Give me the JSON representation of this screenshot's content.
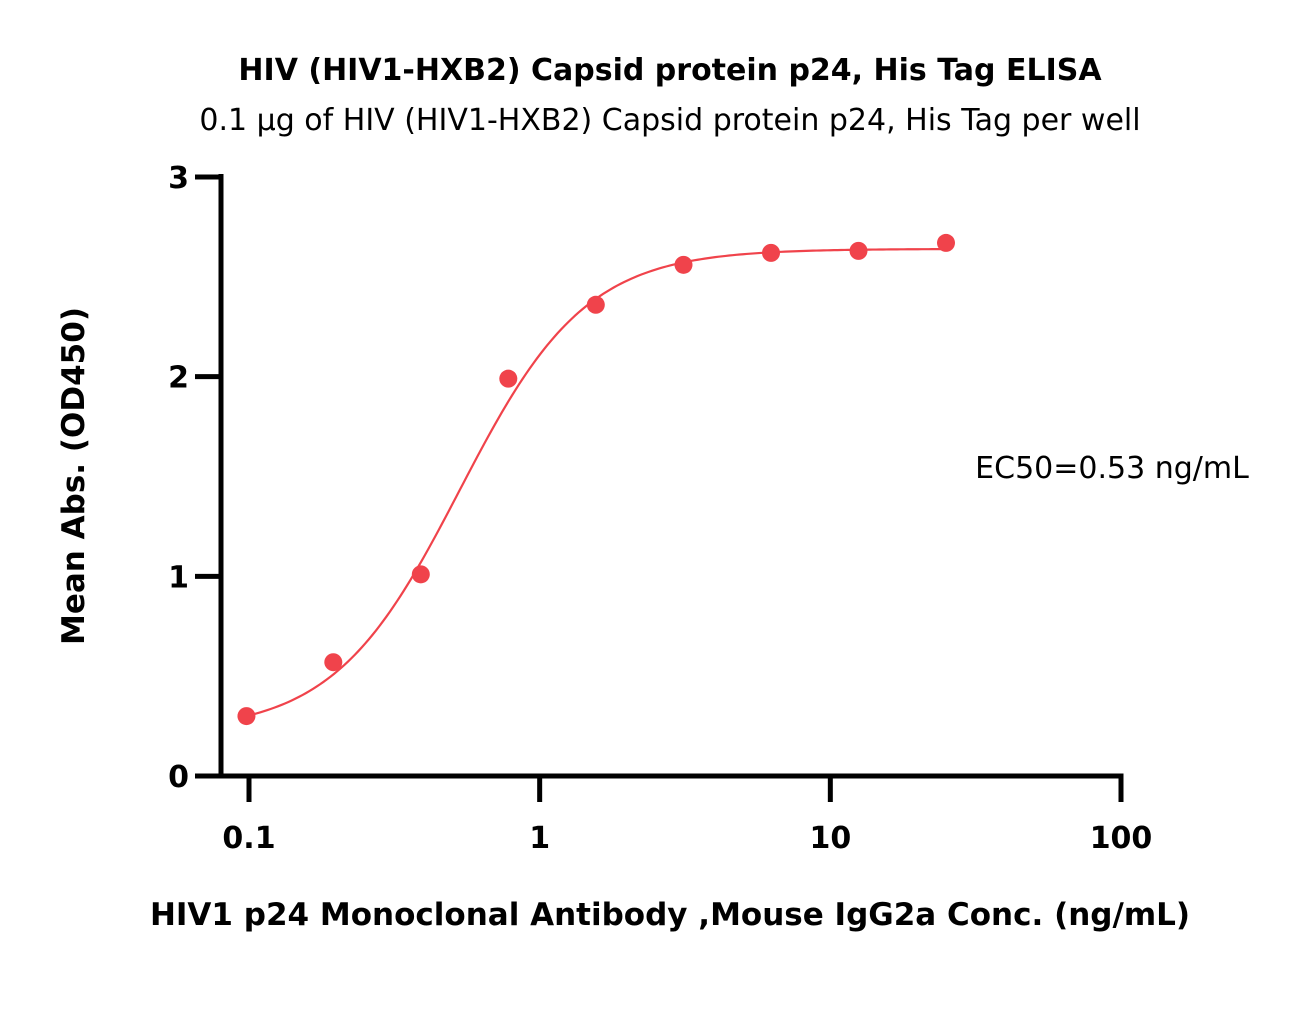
{
  "chart_data": {
    "type": "scatter",
    "title": "HIV (HIV1-HXB2) Capsid protein p24, His Tag ELISA",
    "subtitle": "0.1 µg of HIV (HIV1-HXB2) Capsid protein p24, His Tag per well",
    "xlabel": "HIV1 p24 Monoclonal Antibody ,Mouse IgG2a Conc. (ng/mL)",
    "ylabel": "Mean Abs. (OD450)",
    "xscale": "log",
    "xlim": [
      0.1,
      100
    ],
    "ylim": [
      0,
      3
    ],
    "x_ticks": [
      "0.1",
      "1",
      "10",
      "100"
    ],
    "y_ticks": [
      "0",
      "1",
      "2",
      "3"
    ],
    "grid": false,
    "annotation": "EC50=0.53 ng/mL",
    "series": [
      {
        "x": [
          0.098,
          0.195,
          0.39,
          0.78,
          1.56,
          3.125,
          6.25,
          12.5,
          25
        ],
        "y": [
          0.3,
          0.57,
          1.01,
          1.99,
          2.36,
          2.56,
          2.62,
          2.63,
          2.67
        ],
        "color": "#f0434b",
        "fit": {
          "model": "4PL",
          "bottom": 0.22,
          "top": 2.64,
          "ec50": 0.53,
          "hill": 2.0,
          "x_range": [
            0.098,
            25
          ]
        }
      }
    ]
  }
}
